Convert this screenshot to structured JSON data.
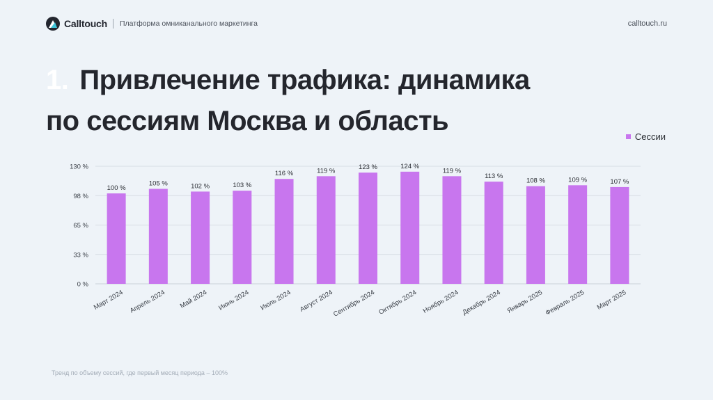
{
  "header": {
    "brand": "Calltouch",
    "tagline": "Платформа омниканального маркетинга",
    "site": "calltouch.ru"
  },
  "slide": {
    "number": "1.",
    "title_line1": "Привлечение трафика: динамика",
    "title_line2": "по сессиям Москва и область",
    "footnote": "Тренд по объему сессий, где первый месяц периода – 100%"
  },
  "colors": {
    "bar": "#c876ee",
    "background": "#eef3f8",
    "grid": "#d6dce3"
  },
  "chart_data": {
    "type": "bar",
    "categories": [
      "Март 2024",
      "Апрель 2024",
      "Май 2024",
      "Июнь 2024",
      "Июль 2024",
      "Август 2024",
      "Сентябрь 2024",
      "Октябрь 2024",
      "Ноябрь 2024",
      "Декабрь 2024",
      "Январь 2025",
      "Февраль 2025",
      "Март 2025"
    ],
    "series": [
      {
        "name": "Сессии",
        "values": [
          100,
          105,
          102,
          103,
          116,
          119,
          123,
          124,
          119,
          113,
          108,
          109,
          107
        ],
        "labels": [
          "100 %",
          "105 %",
          "102 %",
          "103 %",
          "116 %",
          "119 %",
          "123 %",
          "124 %",
          "119 %",
          "113 %",
          "108 %",
          "109 %",
          "107 %"
        ]
      }
    ],
    "yticks": [
      0,
      32.5,
      65,
      97.5,
      130
    ],
    "ytick_labels": [
      "0 %",
      "33 %",
      "65 %",
      "98 %",
      "130 %"
    ],
    "ylim": [
      0,
      130
    ],
    "grid": true,
    "legend": "top-right",
    "xlabel": "",
    "ylabel": ""
  }
}
